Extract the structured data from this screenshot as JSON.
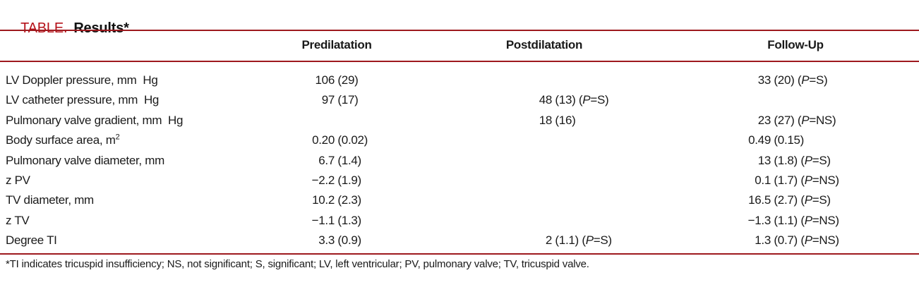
{
  "title": {
    "label": "TABLE.",
    "subtitle": "Results*"
  },
  "colors": {
    "rule_red": "#9e191e",
    "title_red": "#b5121a"
  },
  "table": {
    "columns": [
      "Predilatation",
      "Postdilatation",
      "Follow-Up"
    ],
    "rows": [
      {
        "label": "LV Doppler pressure, mm  Hg",
        "cells": [
          {
            "value": "106 (29)",
            "p": null
          },
          null,
          {
            "value": "33 (20)",
            "p": "S"
          }
        ]
      },
      {
        "label": "LV catheter pressure, mm  Hg",
        "cells": [
          {
            "value": "97 (17)",
            "p": null
          },
          {
            "value": "48 (13)",
            "p": "S"
          },
          null
        ]
      },
      {
        "label": "Pulmonary valve gradient, mm  Hg",
        "cells": [
          null,
          {
            "value": "18 (16)",
            "p": null
          },
          {
            "value": "23 (27)",
            "p": "NS"
          }
        ]
      },
      {
        "label": "Body surface area, m",
        "label_sup": "2",
        "cells": [
          {
            "value": "0.20 (0.02)",
            "p": null
          },
          null,
          {
            "value": "0.49 (0.15)",
            "p": null
          }
        ]
      },
      {
        "label": "Pulmonary valve diameter, mm",
        "cells": [
          {
            "value": "6.7 (1.4)",
            "p": null
          },
          null,
          {
            "value": "13 (1.8)",
            "p": "S"
          }
        ]
      },
      {
        "label": "z PV",
        "cells": [
          {
            "value": "−2.2 (1.9)",
            "p": null
          },
          null,
          {
            "value": "0.1 (1.7)",
            "p": "NS"
          }
        ]
      },
      {
        "label": "TV diameter, mm",
        "cells": [
          {
            "value": "10.2 (2.3)",
            "p": null
          },
          null,
          {
            "value": "16.5 (2.7)",
            "p": "S"
          }
        ]
      },
      {
        "label": "z TV",
        "cells": [
          {
            "value": "−1.1 (1.3)",
            "p": null
          },
          null,
          {
            "value": "−1.3 (1.1)",
            "p": "NS"
          }
        ]
      },
      {
        "label": "Degree TI",
        "cells": [
          {
            "value": "3.3 (0.9)",
            "p": null
          },
          {
            "value": "2 (1.1)",
            "p": "S"
          },
          {
            "value": "1.3 (0.7)",
            "p": "NS"
          }
        ]
      }
    ]
  },
  "footnote": "*TI indicates tricuspid insufficiency; NS, not significant; S, significant; LV, left ventricular; PV, pulmonary valve; TV, tricuspid valve."
}
